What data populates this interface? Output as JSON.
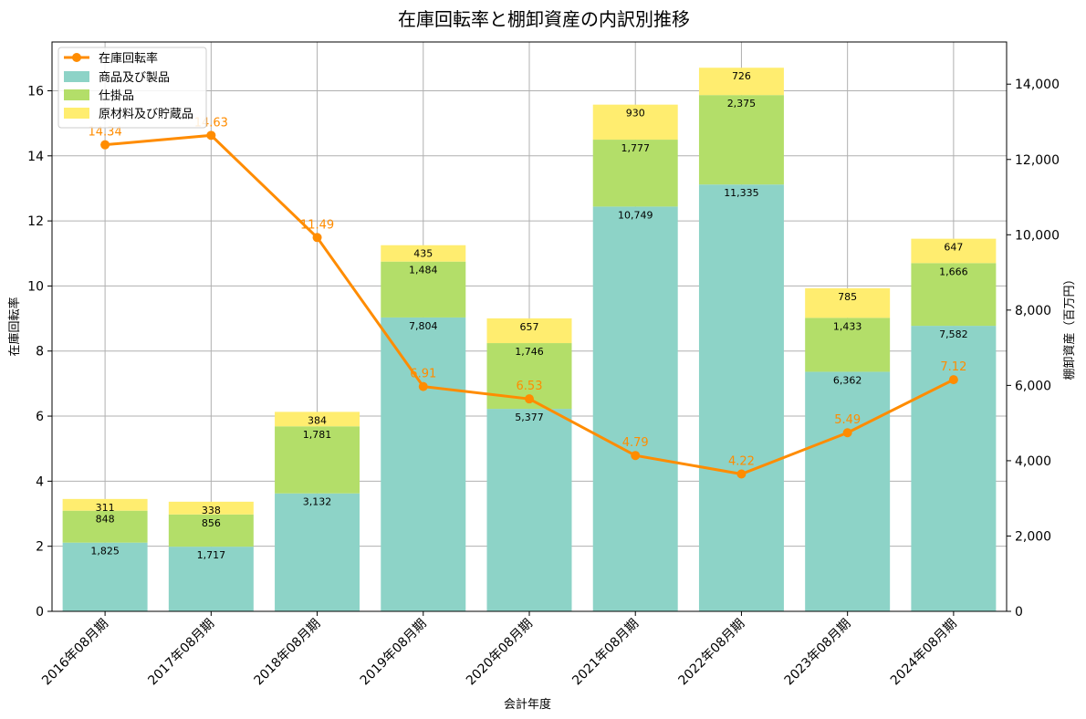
{
  "chart_data": {
    "type": "bar",
    "title": "在庫回転率と棚卸資産の内訳別推移",
    "xlabel": "会計年度",
    "ylabel_left": "在庫回転率",
    "ylabel_right": "棚卸資産（百万円）",
    "categories": [
      "2016年08月期",
      "2017年08月期",
      "2018年08月期",
      "2019年08月期",
      "2020年08月期",
      "2021年08月期",
      "2022年08月期",
      "2023年08月期",
      "2024年08月期"
    ],
    "stacked_series": [
      {
        "name": "商品及び製品",
        "color": "#8dd3c7",
        "values": [
          1825,
          1717,
          3132,
          7804,
          5377,
          10749,
          11335,
          6362,
          7582
        ],
        "labels": [
          "1,825",
          "1,717",
          "3,132",
          "7,804",
          "5,377",
          "10,749",
          "11,335",
          "6,362",
          "7,582"
        ]
      },
      {
        "name": "仕掛品",
        "color": "#b3de69",
        "values": [
          848,
          856,
          1781,
          1484,
          1746,
          1777,
          2375,
          1433,
          1666
        ],
        "labels": [
          "848",
          "856",
          "1,781",
          "1,484",
          "1,746",
          "1,777",
          "2,375",
          "1,433",
          "1,666"
        ]
      },
      {
        "name": "原材料及び貯蔵品",
        "color": "#ffed6f",
        "values": [
          311,
          338,
          384,
          435,
          657,
          930,
          726,
          785,
          647
        ],
        "labels": [
          "311",
          "338",
          "384",
          "435",
          "657",
          "930",
          "726",
          "785",
          "647"
        ]
      }
    ],
    "line_series": {
      "name": "在庫回転率",
      "color": "#ff8c00",
      "values": [
        14.34,
        14.63,
        11.49,
        6.91,
        6.53,
        4.79,
        4.22,
        5.49,
        7.12
      ],
      "labels": [
        "14.34",
        "14.63",
        "11.49",
        "6.91",
        "6.53",
        "4.79",
        "4.22",
        "5.49",
        "7.12"
      ]
    },
    "ylim_left": [
      0,
      17.5
    ],
    "ylim_right": [
      0,
      15120
    ],
    "yticks_left": [
      0,
      2,
      4,
      6,
      8,
      10,
      12,
      14,
      16
    ],
    "yticks_left_labels": [
      "0",
      "2",
      "4",
      "6",
      "8",
      "10",
      "12",
      "14",
      "16"
    ],
    "yticks_right": [
      0,
      2000,
      4000,
      6000,
      8000,
      10000,
      12000,
      14000
    ],
    "yticks_right_labels": [
      "0",
      "2,000",
      "4,000",
      "6,000",
      "8,000",
      "10,000",
      "12,000",
      "14,000"
    ],
    "grid": true,
    "legend_position": "top-left"
  }
}
